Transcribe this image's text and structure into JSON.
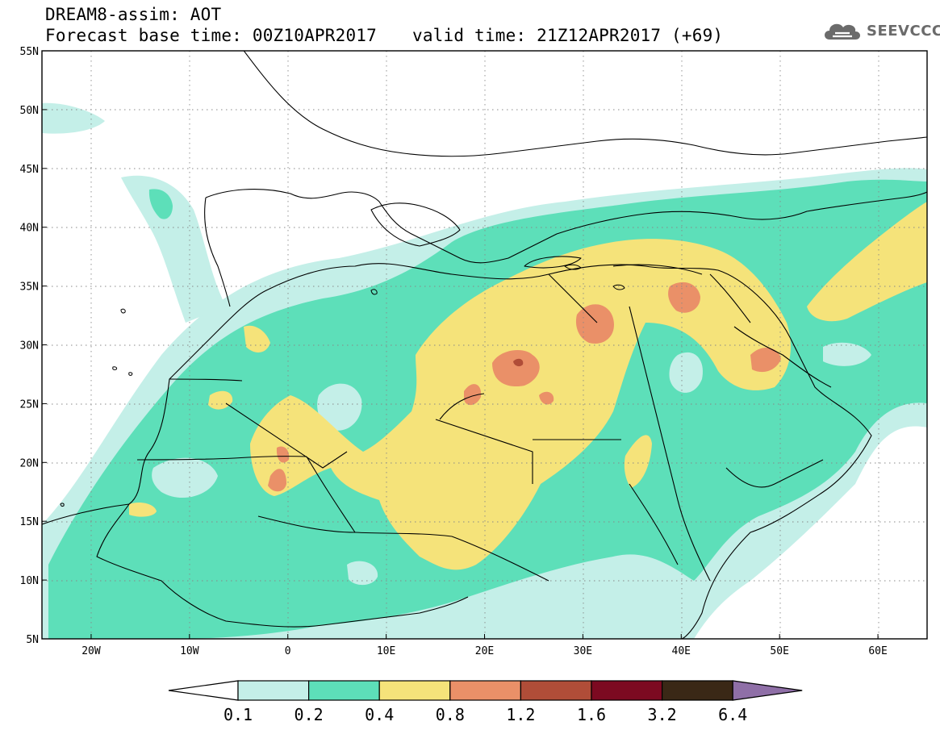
{
  "header": {
    "model_line": "DREAM8-assim: AOT",
    "base_time": "Forecast base time: 00Z10APR2017",
    "valid_time": "valid time: 21Z12APR2017 (+69)"
  },
  "logo": {
    "icon": "cloud-icon",
    "text": "SEEVCCC"
  },
  "map": {
    "lon_range": [
      -25,
      65
    ],
    "lat_range": [
      5,
      55
    ],
    "lon_ticks": [
      "20W",
      "10W",
      "0",
      "10E",
      "20E",
      "30E",
      "40E",
      "50E",
      "60E"
    ],
    "lat_ticks": [
      "55N",
      "50N",
      "45N",
      "40N",
      "35N",
      "30N",
      "25N",
      "20N",
      "15N",
      "10N",
      "5N"
    ],
    "gridlines": "dotted"
  },
  "colorbar": {
    "levels": [
      "0.1",
      "0.2",
      "0.4",
      "0.8",
      "1.2",
      "1.6",
      "3.2",
      "6.4"
    ],
    "colors": [
      "#ffffff",
      "#c4efe8",
      "#5ddfb9",
      "#f5e37a",
      "#ea9068",
      "#b04d38",
      "#7c0a21",
      "#3a2816",
      "#8f6fa7"
    ]
  }
}
